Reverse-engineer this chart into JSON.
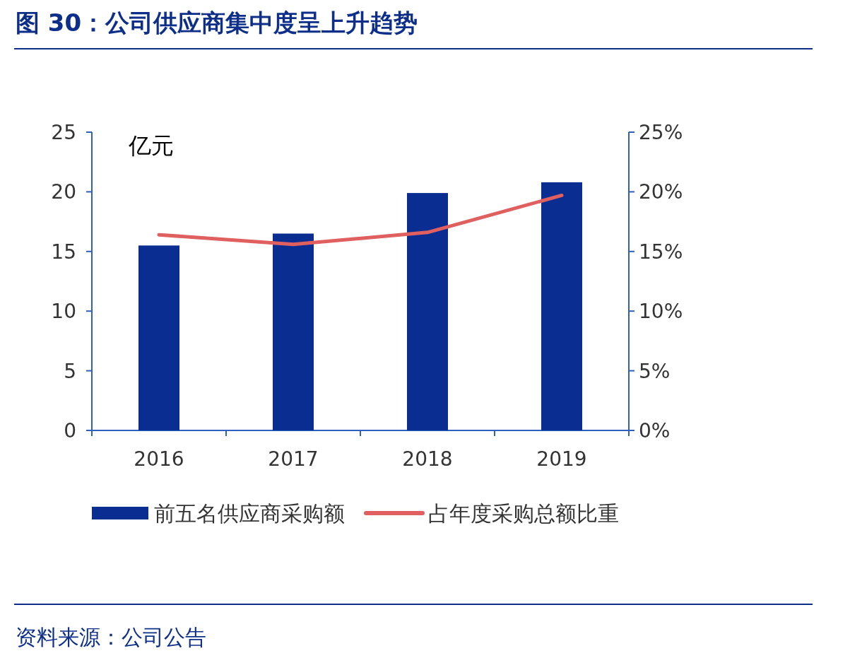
{
  "chart_data": {
    "type": "bar",
    "title": "图 30：公司供应商集中度呈上升趋势",
    "ylabel": "亿元",
    "categories": [
      "2016",
      "2017",
      "2018",
      "2019"
    ],
    "series": [
      {
        "name": "前五名供应商采购额",
        "color": "#0a2d91",
        "values": [
          15.5,
          16.5,
          19.9,
          20.8
        ]
      },
      {
        "type": "line",
        "name": "占年度采购总额比重",
        "color": "#e06060",
        "axis": "y2",
        "values": [
          16.4,
          15.6,
          16.6,
          19.7
        ]
      }
    ],
    "ylim": [
      0,
      25
    ],
    "yticks": [
      0,
      5,
      10,
      15,
      20,
      25
    ],
    "y2lim": [
      0,
      25
    ],
    "y2ticks": [
      {
        "value": 0,
        "label": "0%"
      },
      {
        "value": 5,
        "label": "5%"
      },
      {
        "value": 10,
        "label": "10%"
      },
      {
        "value": 15,
        "label": "15%"
      },
      {
        "value": 20,
        "label": "20%"
      },
      {
        "value": 25,
        "label": "25%"
      }
    ],
    "legend": "bottom",
    "annotations": [
      "资料来源：公司公告"
    ]
  }
}
